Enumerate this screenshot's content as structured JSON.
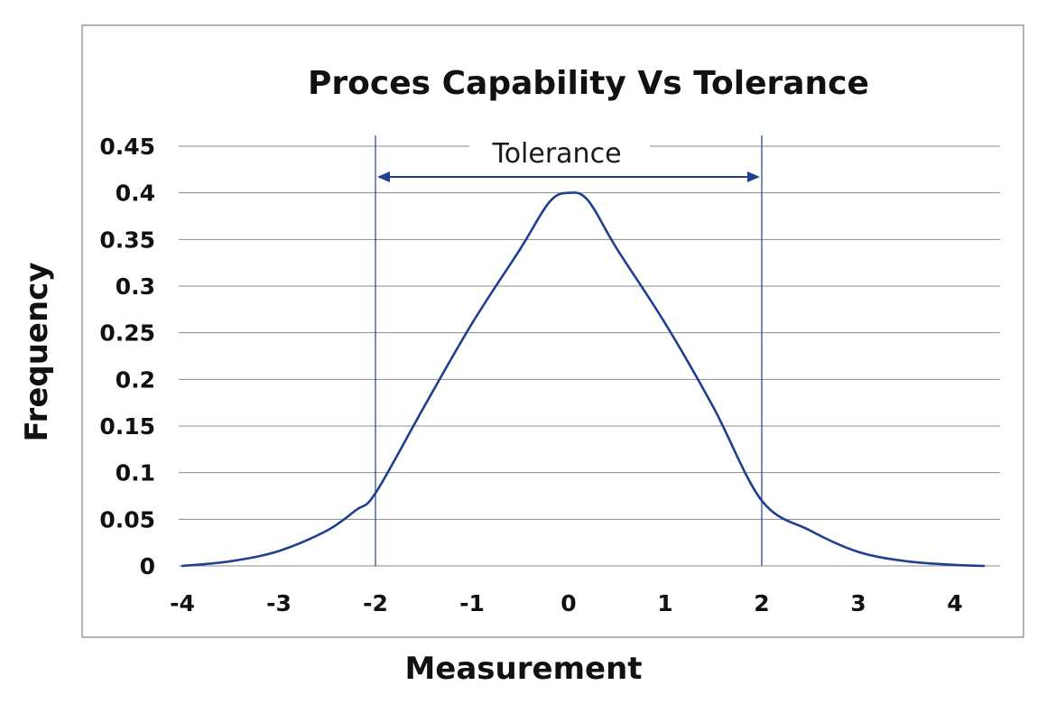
{
  "chart_data": {
    "type": "line",
    "title": "Proces Capability Vs Tolerance",
    "xlabel": "Measurement",
    "ylabel": "Frequency",
    "xlim": [
      -4,
      4.4
    ],
    "ylim": [
      0,
      0.45
    ],
    "x_ticks": [
      "-4",
      "-3",
      "-2",
      "-1",
      "0",
      "1",
      "2",
      "3",
      "4"
    ],
    "y_ticks": [
      "0",
      "0.05",
      "0.1",
      "0.15",
      "0.2",
      "0.25",
      "0.3",
      "0.35",
      "0.4",
      "0.45"
    ],
    "grid": "horizontal",
    "series": [
      {
        "x": [
          -4,
          -3.5,
          -3,
          -2.5,
          -2.2,
          -2,
          -1.5,
          -1,
          -0.5,
          -0.2,
          0,
          0.2,
          0.5,
          1,
          1.5,
          2,
          2.5,
          3,
          3.5,
          4,
          4.3
        ],
        "y": [
          0,
          0.005,
          0.016,
          0.038,
          0.06,
          0.078,
          0.17,
          0.26,
          0.34,
          0.39,
          0.4,
          0.392,
          0.34,
          0.26,
          0.17,
          0.07,
          0.038,
          0.015,
          0.005,
          0.001,
          0
        ],
        "color": "#1f3f8f"
      }
    ],
    "annotations": [
      {
        "text": "Tolerance",
        "from": -2,
        "to": 2
      }
    ],
    "colors": {
      "curve": "#1f3f8f",
      "limits": "#1f3f8f",
      "grid": "#8a8a8a",
      "frame": "#9a9a9a",
      "text": "#111111"
    }
  }
}
